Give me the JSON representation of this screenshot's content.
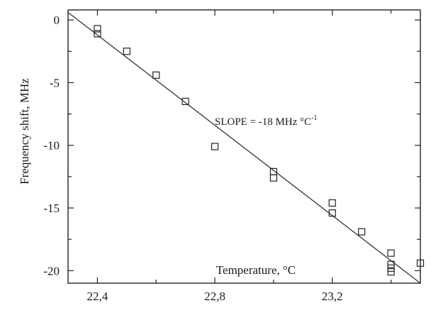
{
  "chart_data": {
    "type": "scatter",
    "xlabel": "Temperature, °C",
    "ylabel": "Frequency shift, MHz",
    "xlim": [
      22.3,
      23.5
    ],
    "ylim": [
      -21,
      0.8
    ],
    "x_ticks": [
      22.4,
      22.8,
      23.2
    ],
    "x_tick_labels": [
      "22,4",
      "22,8",
      "23,2"
    ],
    "x_minor_ticks": [
      22.6,
      23.0,
      23.4
    ],
    "y_ticks": [
      0,
      -5,
      -10,
      -15,
      -20
    ],
    "y_tick_labels": [
      "0",
      "-5",
      "-10",
      "-15",
      "-20"
    ],
    "grid": false,
    "annotation": {
      "text": "SLOPE = -18 MHz °C",
      "superscript": "-1"
    },
    "series": [
      {
        "marker": "open-square",
        "x": [
          22.4,
          22.4,
          22.5,
          22.6,
          22.7,
          22.8,
          23.0,
          23.0,
          23.2,
          23.2,
          23.3,
          23.4,
          23.4,
          23.4,
          23.4,
          23.5
        ],
        "y": [
          -0.7,
          -1.1,
          -2.5,
          -4.4,
          -6.5,
          -10.1,
          -12.1,
          -12.6,
          -14.6,
          -15.4,
          -16.9,
          -18.6,
          -19.5,
          -19.8,
          -20.1,
          -19.4
        ]
      }
    ],
    "fit_line": {
      "slope": -18,
      "x": [
        22.3,
        23.5
      ],
      "y": [
        0.6,
        -21.0
      ]
    }
  }
}
